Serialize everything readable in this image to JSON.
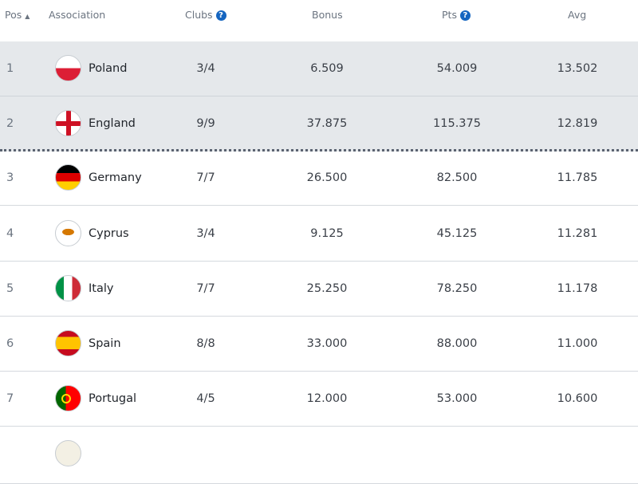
{
  "header": {
    "pos": "Pos",
    "sort_indicator": "▲",
    "association": "Association",
    "clubs": "Clubs",
    "bonus": "Bonus",
    "pts": "Pts",
    "avg": "Avg",
    "help_icon": "?"
  },
  "colors": {
    "highlight": "#e5e8eb",
    "help": "#1565c0"
  },
  "rows": [
    {
      "pos": "1",
      "name": "Poland",
      "flag": "poland-flag",
      "clubs": "3/4",
      "bonus": "6.509",
      "pts": "54.009",
      "avg": "13.502"
    },
    {
      "pos": "2",
      "name": "England",
      "flag": "england-flag",
      "clubs": "9/9",
      "bonus": "37.875",
      "pts": "115.375",
      "avg": "12.819"
    },
    {
      "pos": "3",
      "name": "Germany",
      "flag": "germany-flag",
      "clubs": "7/7",
      "bonus": "26.500",
      "pts": "82.500",
      "avg": "11.785"
    },
    {
      "pos": "4",
      "name": "Cyprus",
      "flag": "cyprus-flag",
      "clubs": "3/4",
      "bonus": "9.125",
      "pts": "45.125",
      "avg": "11.281"
    },
    {
      "pos": "5",
      "name": "Italy",
      "flag": "italy-flag",
      "clubs": "7/7",
      "bonus": "25.250",
      "pts": "78.250",
      "avg": "11.178"
    },
    {
      "pos": "6",
      "name": "Spain",
      "flag": "spain-flag",
      "clubs": "8/8",
      "bonus": "33.000",
      "pts": "88.000",
      "avg": "11.000"
    },
    {
      "pos": "7",
      "name": "Portugal",
      "flag": "portugal-flag",
      "clubs": "4/5",
      "bonus": "12.000",
      "pts": "53.000",
      "avg": "10.600"
    }
  ]
}
